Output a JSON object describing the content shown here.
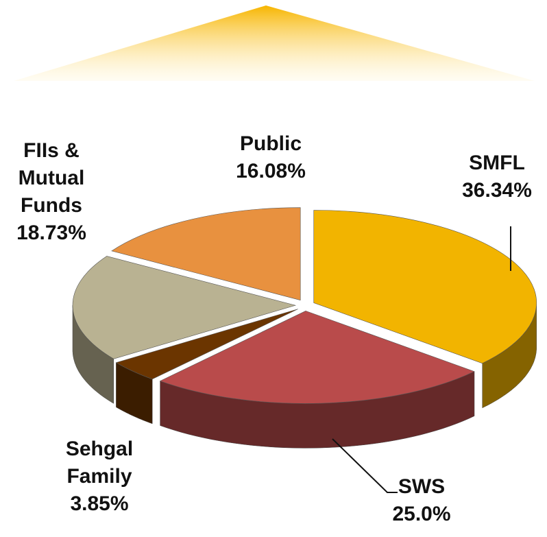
{
  "chart_data": {
    "type": "pie",
    "categories": [
      "SMFL",
      "SWS",
      "Sehgal Family",
      "FIIs & Mutual Funds",
      "Public"
    ],
    "values": [
      36.34,
      25.0,
      3.85,
      18.73,
      16.08
    ],
    "value_labels": [
      "36.34%",
      "25.0%",
      "3.85%",
      "18.73%",
      "16.08%"
    ],
    "colors": [
      "#f2b400",
      "#b94b4b",
      "#6b3500",
      "#b9b292",
      "#e8913f"
    ]
  }
}
